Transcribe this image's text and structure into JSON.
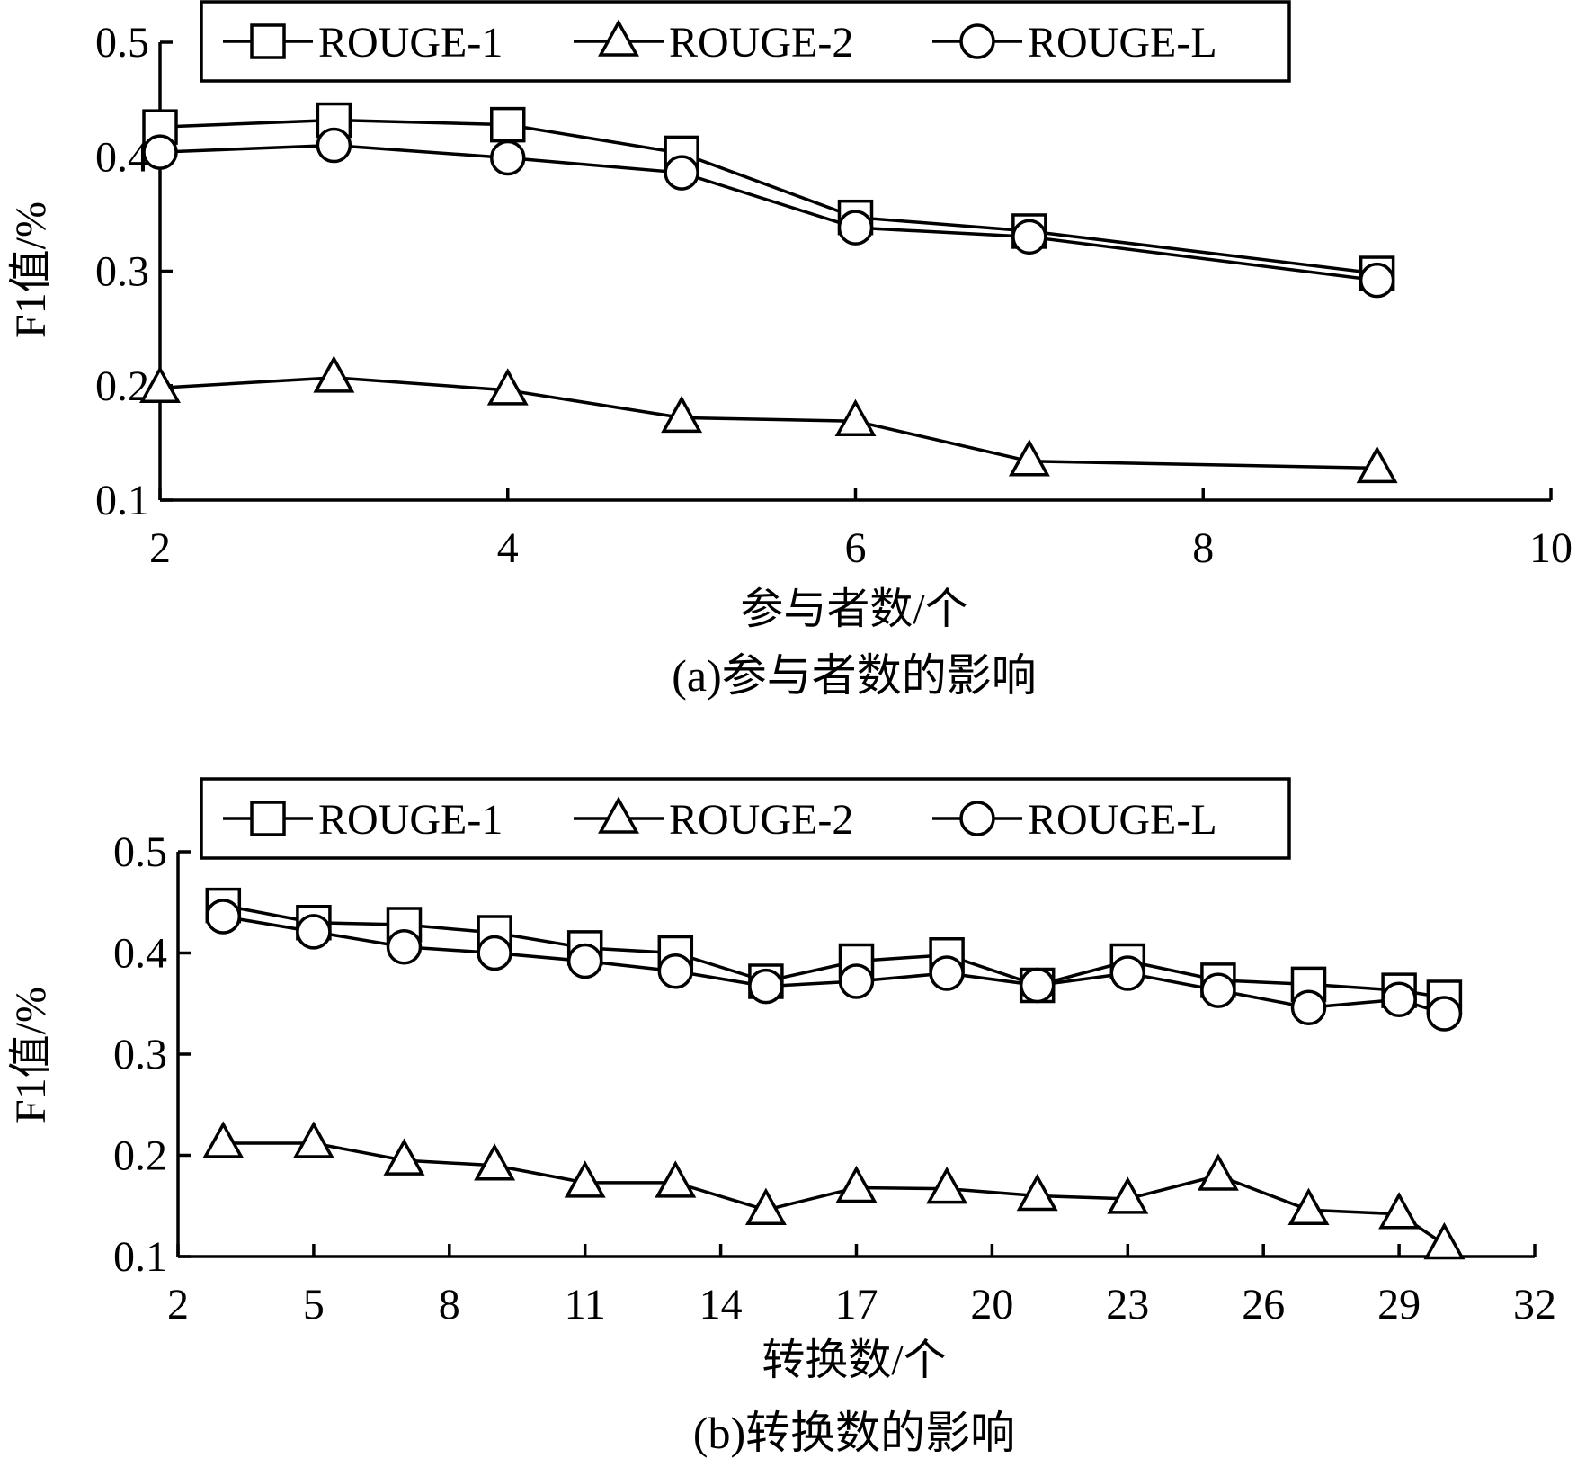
{
  "chart_data": [
    {
      "type": "line",
      "ylabel": "F1值/%",
      "xlabel": "参与者数/个",
      "caption": "(a)参与者数的影响",
      "xlim": [
        2,
        10
      ],
      "ylim": [
        0.1,
        0.5
      ],
      "xticks": [
        "2",
        "4",
        "6",
        "8",
        "10"
      ],
      "yticks": [
        "0.1",
        "0.2",
        "0.3",
        "0.4",
        "0.5"
      ],
      "x": [
        2,
        3,
        4,
        5,
        6,
        7,
        9
      ],
      "series": [
        {
          "name": "ROUGE-1",
          "marker": "square",
          "values": [
            0.426,
            0.432,
            0.428,
            0.403,
            0.347,
            0.335,
            0.298
          ]
        },
        {
          "name": "ROUGE-2",
          "marker": "triangle",
          "values": [
            0.198,
            0.207,
            0.196,
            0.172,
            0.169,
            0.134,
            0.128
          ]
        },
        {
          "name": "ROUGE-L",
          "marker": "circle",
          "values": [
            0.404,
            0.41,
            0.399,
            0.386,
            0.338,
            0.33,
            0.292
          ]
        }
      ],
      "legend": "top"
    },
    {
      "type": "line",
      "ylabel": "F1值/%",
      "xlabel": "转换数/个",
      "caption": "(b)转换数的影响",
      "xlim": [
        2,
        32
      ],
      "ylim": [
        0.1,
        0.5
      ],
      "xticks": [
        "2",
        "5",
        "8",
        "11",
        "14",
        "17",
        "20",
        "23",
        "26",
        "29",
        "32"
      ],
      "yticks": [
        "0.1",
        "0.2",
        "0.3",
        "0.4",
        "0.5"
      ],
      "x": [
        3,
        5,
        7,
        9,
        11,
        13,
        15,
        17,
        19,
        21,
        23,
        25,
        27,
        29,
        30
      ],
      "series": [
        {
          "name": "ROUGE-1",
          "marker": "square",
          "values": [
            0.447,
            0.43,
            0.428,
            0.42,
            0.405,
            0.4,
            0.372,
            0.392,
            0.398,
            0.368,
            0.392,
            0.373,
            0.369,
            0.363,
            0.356
          ]
        },
        {
          "name": "ROUGE-2",
          "marker": "triangle",
          "values": [
            0.212,
            0.212,
            0.195,
            0.19,
            0.173,
            0.173,
            0.146,
            0.168,
            0.167,
            0.16,
            0.157,
            0.18,
            0.146,
            0.142,
            0.112
          ]
        },
        {
          "name": "ROUGE-L",
          "marker": "circle",
          "values": [
            0.436,
            0.421,
            0.406,
            0.4,
            0.392,
            0.382,
            0.367,
            0.372,
            0.38,
            0.368,
            0.38,
            0.363,
            0.346,
            0.354,
            0.34
          ]
        }
      ],
      "legend": "top"
    }
  ]
}
